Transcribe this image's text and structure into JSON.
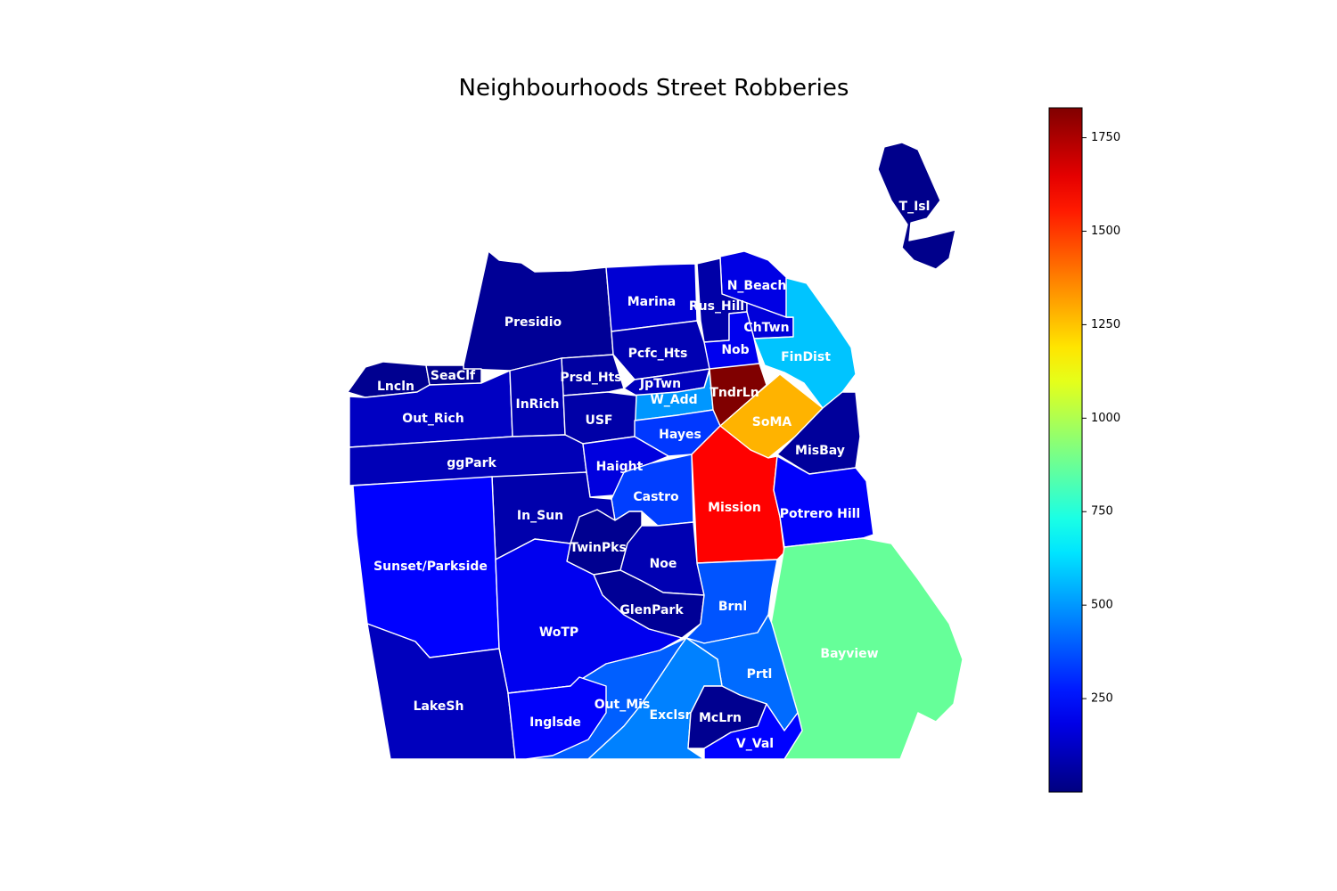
{
  "title": "Neighbourhoods Street Robberies",
  "colorbar": {
    "cmap": "jet",
    "min": 0,
    "max": 1830,
    "ticks": [
      "250",
      "500",
      "750",
      "1000",
      "1250",
      "1500",
      "1750"
    ],
    "tick_values": [
      250,
      500,
      750,
      1000,
      1250,
      1500,
      1750
    ]
  },
  "neighborhoods": [
    {
      "name": "Presidio",
      "value": 40
    },
    {
      "name": "Marina",
      "value": 150
    },
    {
      "name": "N_Beach",
      "value": 180
    },
    {
      "name": "Rus_Hill",
      "value": 70
    },
    {
      "name": "ChTwn",
      "value": 160
    },
    {
      "name": "Nob",
      "value": 200
    },
    {
      "name": "Pcfc_Hts",
      "value": 90
    },
    {
      "name": "FinDist",
      "value": 580
    },
    {
      "name": "Lncln",
      "value": 30
    },
    {
      "name": "SeaClf",
      "value": 25
    },
    {
      "name": "Prsd_Hts",
      "value": 60
    },
    {
      "name": "JpTwn",
      "value": 110
    },
    {
      "name": "W_Add",
      "value": 500
    },
    {
      "name": "TndrLn",
      "value": 1830
    },
    {
      "name": "SoMA",
      "value": 1280
    },
    {
      "name": "Out_Rich",
      "value": 120
    },
    {
      "name": "InRich",
      "value": 90
    },
    {
      "name": "USF",
      "value": 70
    },
    {
      "name": "Hayes",
      "value": 330
    },
    {
      "name": "MisBay",
      "value": 50
    },
    {
      "name": "ggPark",
      "value": 100
    },
    {
      "name": "Haight",
      "value": 170
    },
    {
      "name": "Castro",
      "value": 340
    },
    {
      "name": "Mission",
      "value": 1600
    },
    {
      "name": "Potrero Hill",
      "value": 220
    },
    {
      "name": "In_Sun",
      "value": 80
    },
    {
      "name": "TwinPks",
      "value": 30
    },
    {
      "name": "Sunset/Parkside",
      "value": 230
    },
    {
      "name": "Noe",
      "value": 90
    },
    {
      "name": "GlenPark",
      "value": 40
    },
    {
      "name": "Brnl",
      "value": 380
    },
    {
      "name": "WoTP",
      "value": 200
    },
    {
      "name": "Bayview",
      "value": 870
    },
    {
      "name": "Prtl",
      "value": 420
    },
    {
      "name": "LakeSh",
      "value": 110
    },
    {
      "name": "Out_Mis",
      "value": 400
    },
    {
      "name": "Exclsr",
      "value": 460
    },
    {
      "name": "McLrn",
      "value": 30
    },
    {
      "name": "Inglsde",
      "value": 220
    },
    {
      "name": "V_Val",
      "value": 230
    },
    {
      "name": "T_Isl",
      "value": 20
    }
  ]
}
